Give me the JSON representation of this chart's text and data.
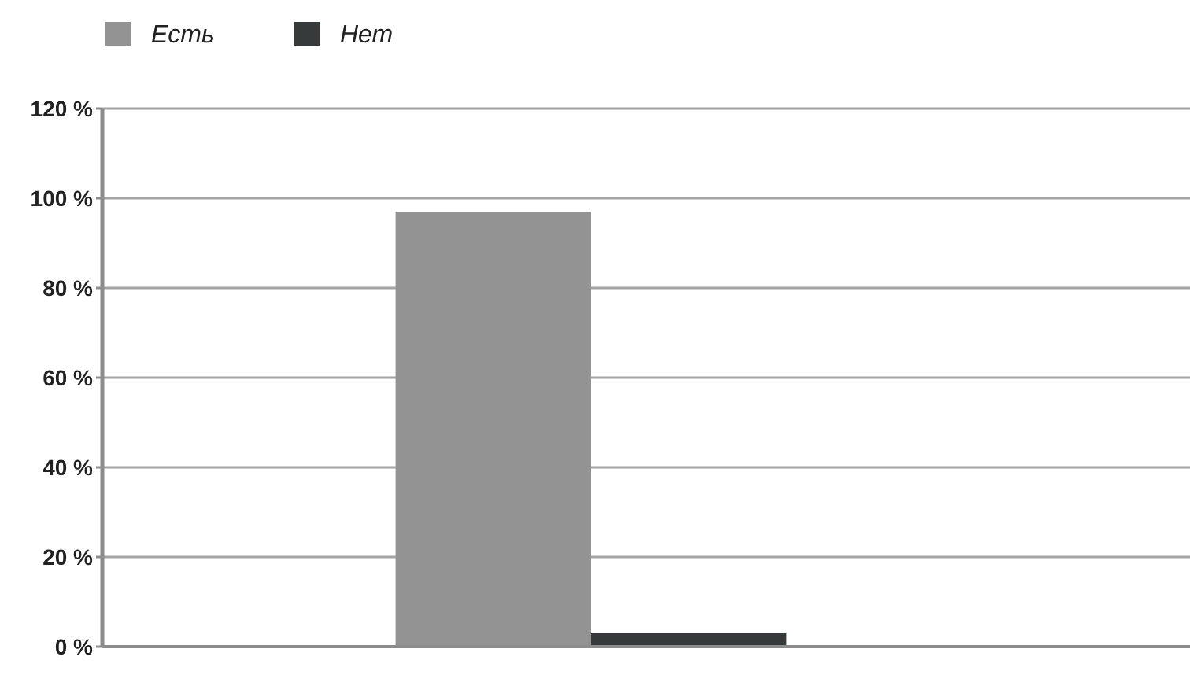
{
  "chart_data": {
    "type": "bar",
    "categories": [
      null
    ],
    "series": [
      {
        "name": "Есть",
        "color": "#939393",
        "values": [
          97
        ]
      },
      {
        "name": "Нет",
        "color": "#363a3b",
        "values": [
          3
        ]
      }
    ],
    "ylim": [
      0,
      120
    ],
    "yticks": [
      {
        "value": 0,
        "label": "0 %"
      },
      {
        "value": 20,
        "label": "20 %"
      },
      {
        "value": 40,
        "label": "40 %"
      },
      {
        "value": 60,
        "label": "60 %"
      },
      {
        "value": 80,
        "label": "80 %"
      },
      {
        "value": 100,
        "label": "100 %"
      },
      {
        "value": 120,
        "label": "120 %"
      }
    ],
    "grid": "y",
    "legend": "top left"
  }
}
